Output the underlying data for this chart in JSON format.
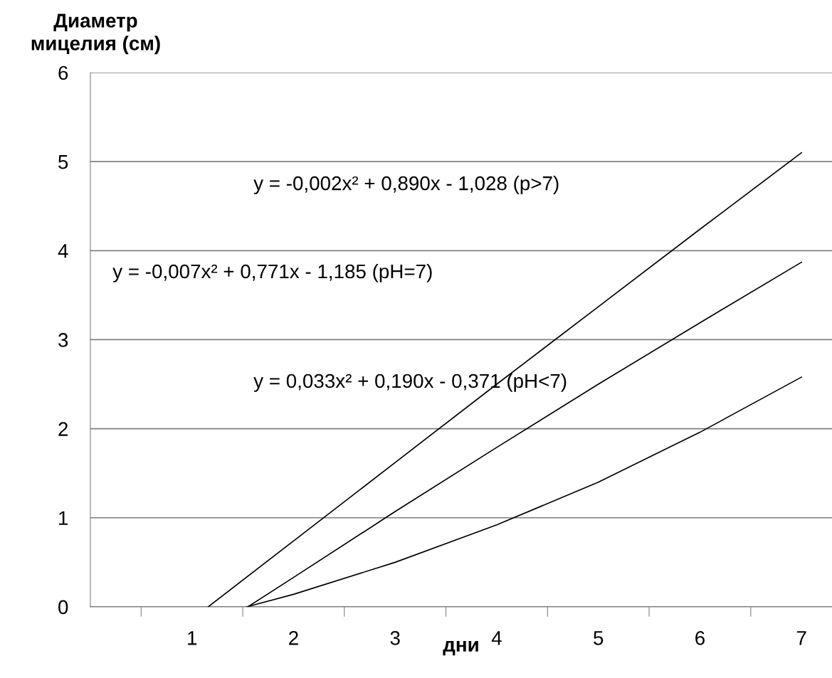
{
  "chart_data": {
    "type": "line",
    "xlabel": "дни",
    "ylabel": "Диаметр\nмицелия (см)",
    "series": [
      {
        "color": "#000000",
        "x": [
          1.16,
          2,
          3,
          4,
          5,
          6,
          7
        ],
        "values": [
          0,
          0.74,
          1.62,
          2.5,
          3.37,
          4.24,
          5.1
        ]
      },
      {
        "color": "#000000",
        "x": [
          1.55,
          2,
          3,
          4,
          5,
          6,
          7
        ],
        "values": [
          0,
          0.33,
          1.07,
          1.79,
          2.5,
          3.19,
          3.87
        ]
      },
      {
        "color": "#000000",
        "x": [
          1.54,
          2,
          3,
          4,
          5,
          6,
          7
        ],
        "values": [
          0,
          0.14,
          0.5,
          0.92,
          1.4,
          1.96,
          2.58
        ]
      }
    ],
    "annotations": [
      "y = -0,002x² + 0,890x - 1,028 (p>7)",
      "y = -0,007x² + 0,771x - 1,185 (pH=7)",
      "y = 0,033x² + 0,190x - 0,371 (pH<7)"
    ],
    "xlim": [
      0,
      7.3
    ],
    "xticks": [
      {
        "value": 0.5,
        "label": null
      },
      1,
      {
        "value": 1.5,
        "label": null
      },
      2,
      {
        "value": 2.5,
        "label": null
      },
      3,
      {
        "value": 3.5,
        "label": null
      },
      4,
      {
        "value": 4.5,
        "label": null
      },
      5,
      {
        "value": 5.5,
        "label": null
      },
      6,
      {
        "value": 6.5,
        "label": null
      },
      7
    ],
    "ylim": [
      0,
      6
    ],
    "yticks": [
      0,
      1,
      2,
      3,
      4,
      5,
      6
    ],
    "grid": "y",
    "marker": "none",
    "line_style": "solid",
    "legend": false
  }
}
